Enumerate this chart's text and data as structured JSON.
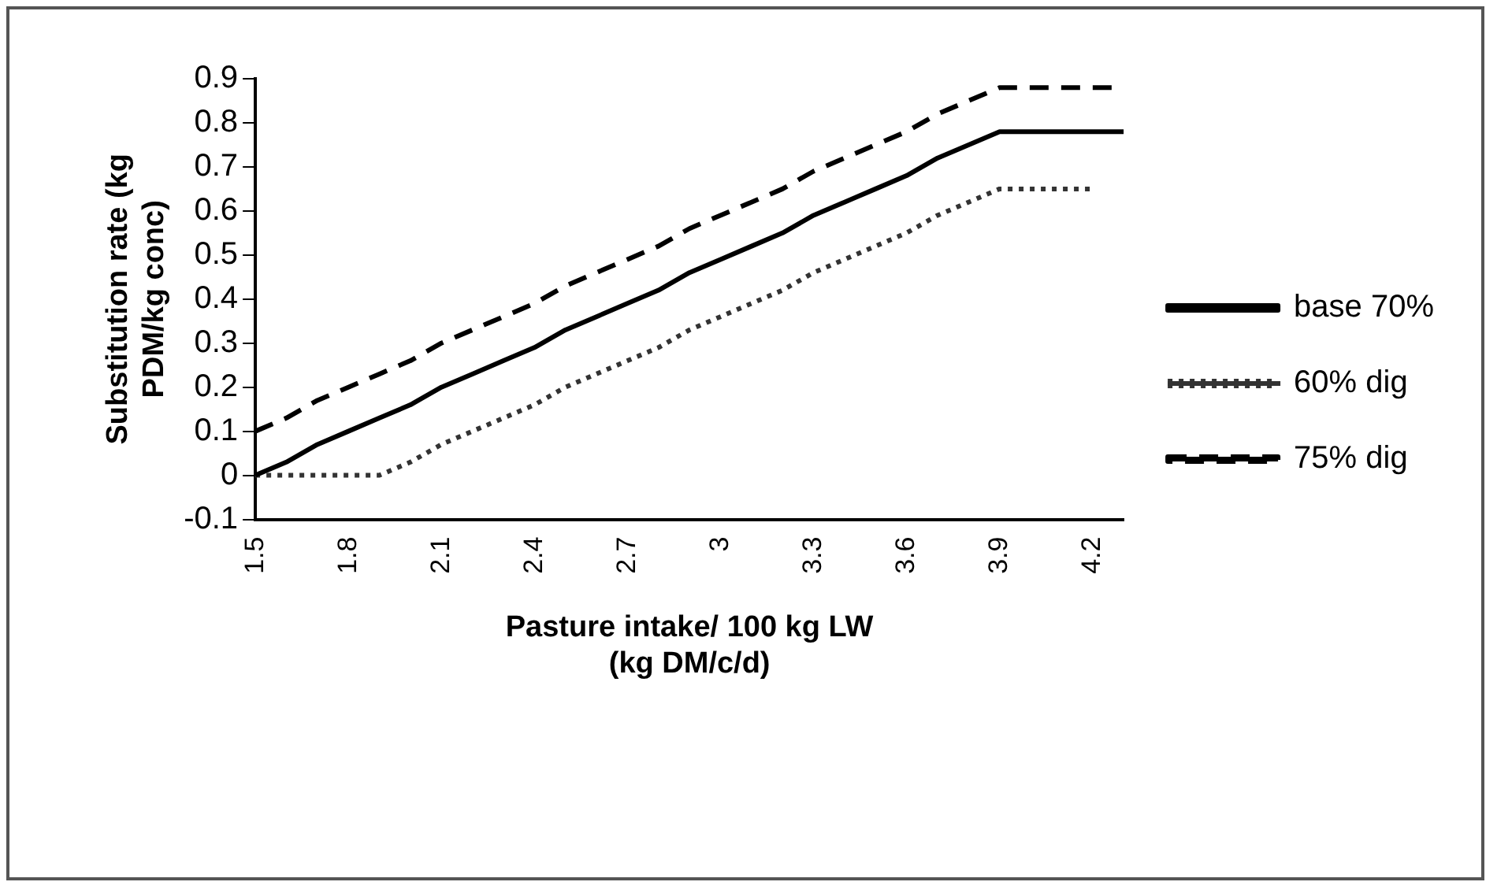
{
  "chart_data": {
    "type": "line",
    "xlabel": "Pasture intake/ 100 kg LW\n(kg DM/c/d)",
    "ylabel": "Substitution rate (kg\nPDM/kg conc)",
    "categories": [
      "1.5",
      null,
      null,
      "1.8",
      null,
      null,
      "2.1",
      null,
      null,
      "2.4",
      null,
      null,
      "2.7",
      null,
      null,
      "3",
      null,
      null,
      "3.3",
      null,
      null,
      "3.6",
      null,
      null,
      "3.9",
      null,
      null,
      "4.2",
      null
    ],
    "series": [
      {
        "name": "base 70%",
        "color": "#000000",
        "line_style": "solid",
        "values": [
          0,
          0.03,
          0.07,
          0.1,
          0.13,
          0.16,
          0.2,
          0.23,
          0.26,
          0.29,
          0.33,
          0.36,
          0.39,
          0.42,
          0.46,
          0.49,
          0.52,
          0.55,
          0.59,
          0.62,
          0.65,
          0.68,
          0.72,
          0.75,
          0.78,
          0.78,
          0.78,
          0.78,
          0.78
        ]
      },
      {
        "name": "60% dig",
        "color": "#333333",
        "line_style": "dotted",
        "values": [
          0,
          0,
          0,
          0,
          0,
          0.03,
          0.07,
          0.1,
          0.13,
          0.16,
          0.2,
          0.23,
          0.26,
          0.29,
          0.33,
          0.36,
          0.39,
          0.42,
          0.46,
          0.49,
          0.52,
          0.55,
          0.59,
          0.62,
          0.65,
          0.65,
          0.65,
          0.65,
          null
        ]
      },
      {
        "name": "75% dig",
        "color": "#000000",
        "line_style": "dashed",
        "values": [
          0.1,
          0.13,
          0.17,
          0.2,
          0.23,
          0.26,
          0.3,
          0.33,
          0.36,
          0.39,
          0.43,
          0.46,
          0.49,
          0.52,
          0.56,
          0.59,
          0.62,
          0.65,
          0.69,
          0.72,
          0.75,
          0.78,
          0.82,
          0.85,
          0.88,
          0.88,
          0.88,
          0.88,
          0.88
        ]
      }
    ],
    "ylim": [
      -0.1,
      0.9
    ],
    "yticks": [
      -0.1,
      0,
      0.1,
      0.2,
      0.3,
      0.4,
      0.5,
      0.6,
      0.7,
      0.8,
      0.9
    ],
    "grid": false,
    "legend": "right",
    "marker": "none"
  }
}
